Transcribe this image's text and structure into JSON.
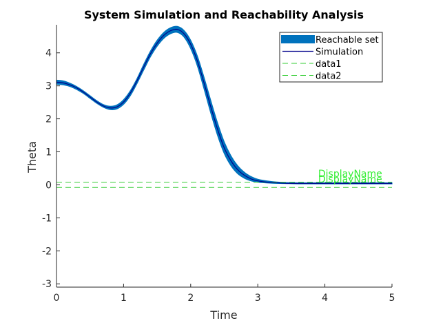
{
  "chart_data": {
    "type": "line",
    "title": "System Simulation and Reachability Analysis",
    "xlabel": "Time",
    "ylabel": "Theta",
    "xlim": [
      0,
      5
    ],
    "ylim": [
      -3.1,
      4.85
    ],
    "xticks": [
      0,
      1,
      2,
      3,
      4,
      5
    ],
    "yticks": [
      -3,
      -2,
      -1,
      0,
      1,
      2,
      3,
      4
    ],
    "grid": false,
    "legend_position": "top-right",
    "x": [
      0,
      0.1,
      0.2,
      0.3,
      0.4,
      0.5,
      0.6,
      0.7,
      0.8,
      0.9,
      1.0,
      1.1,
      1.2,
      1.3,
      1.4,
      1.5,
      1.6,
      1.7,
      1.8,
      1.9,
      2.0,
      2.1,
      2.2,
      2.3,
      2.4,
      2.5,
      2.6,
      2.7,
      2.8,
      2.9,
      3.0,
      3.2,
      3.4,
      3.6,
      3.8,
      4.0,
      4.3,
      4.6,
      5.0
    ],
    "series": [
      {
        "name": "Reachable set",
        "kind": "band",
        "color": "#0072bd",
        "upper": [
          3.17,
          3.15,
          3.08,
          2.98,
          2.85,
          2.7,
          2.55,
          2.43,
          2.38,
          2.42,
          2.58,
          2.85,
          3.22,
          3.65,
          4.05,
          4.38,
          4.62,
          4.76,
          4.8,
          4.68,
          4.38,
          3.9,
          3.25,
          2.55,
          1.88,
          1.3,
          0.88,
          0.58,
          0.38,
          0.25,
          0.17,
          0.1,
          0.07,
          0.06,
          0.06,
          0.06,
          0.06,
          0.06,
          0.06
        ],
        "lower": [
          3.05,
          3.03,
          2.98,
          2.89,
          2.77,
          2.62,
          2.47,
          2.35,
          2.28,
          2.3,
          2.44,
          2.7,
          3.07,
          3.48,
          3.88,
          4.2,
          4.44,
          4.58,
          4.62,
          4.48,
          4.13,
          3.6,
          2.9,
          2.17,
          1.5,
          0.95,
          0.58,
          0.34,
          0.2,
          0.12,
          0.08,
          0.05,
          0.04,
          0.03,
          0.03,
          0.03,
          0.03,
          0.03,
          0.03
        ]
      },
      {
        "name": "Simulation",
        "kind": "line",
        "color": "#00008b",
        "values": [
          3.11,
          3.09,
          3.03,
          2.94,
          2.81,
          2.66,
          2.51,
          2.39,
          2.33,
          2.36,
          2.51,
          2.78,
          3.15,
          3.57,
          3.97,
          4.29,
          4.53,
          4.67,
          4.71,
          4.58,
          4.26,
          3.75,
          3.08,
          2.36,
          1.69,
          1.12,
          0.73,
          0.46,
          0.29,
          0.18,
          0.12,
          0.07,
          0.05,
          0.045,
          0.045,
          0.045,
          0.045,
          0.045,
          0.045
        ]
      },
      {
        "name": "data1",
        "kind": "hline",
        "color": "#33cc33",
        "dash": "dashed",
        "y": 0.08
      },
      {
        "name": "data2",
        "kind": "hline",
        "color": "#33cc33",
        "dash": "dashed",
        "y": -0.08
      }
    ],
    "annotations": [
      {
        "text": "DisplayName",
        "x": 3.9,
        "y": 0.24,
        "color": "#33ee33"
      },
      {
        "text": "DisplayName",
        "x": 3.9,
        "y": 0.07,
        "color": "#33ee33"
      }
    ]
  }
}
